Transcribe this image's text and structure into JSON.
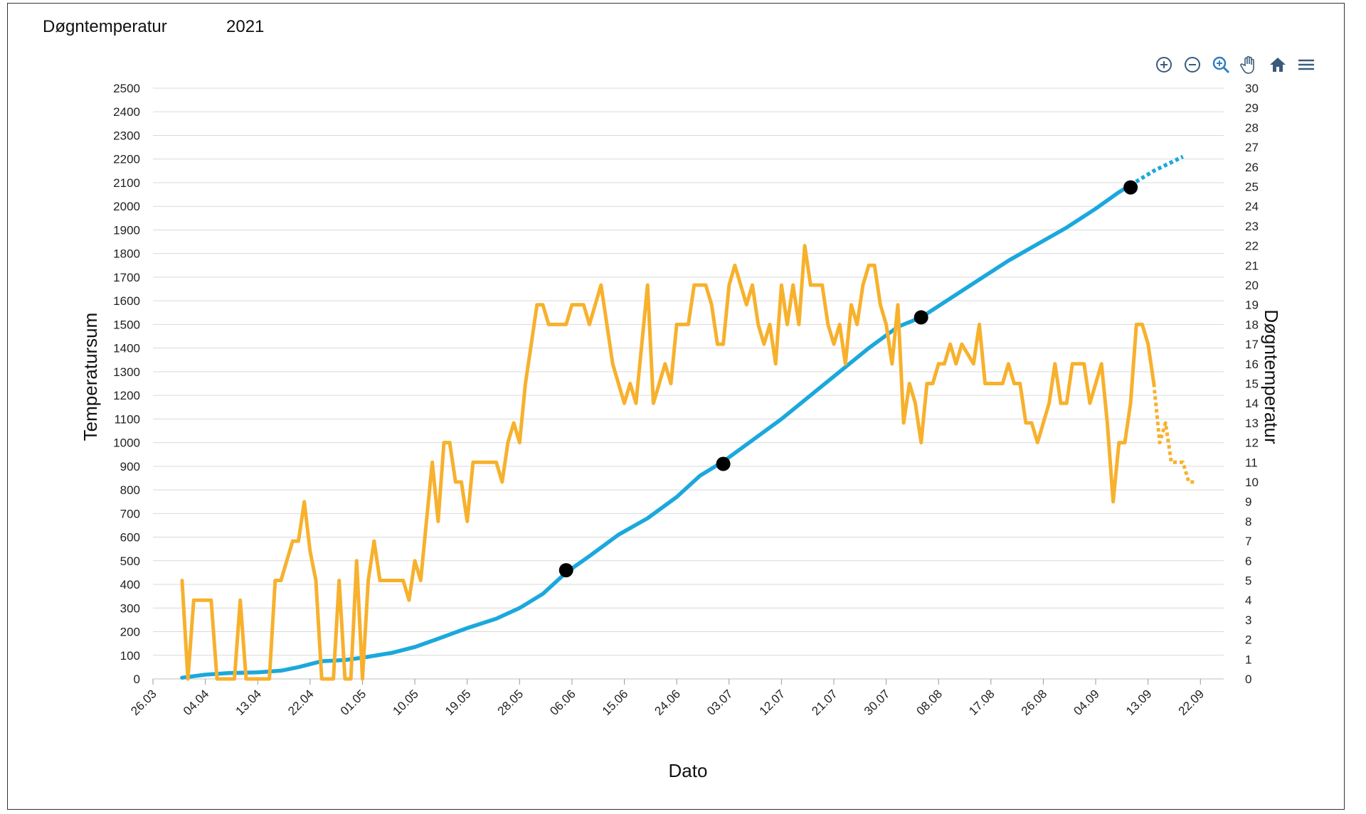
{
  "header": {
    "title": "Døgntemperatur",
    "year": "2021"
  },
  "toolbar": [
    {
      "name": "zoom-in-icon"
    },
    {
      "name": "zoom-out-icon"
    },
    {
      "name": "zoom-search-icon"
    },
    {
      "name": "pan-hand-icon"
    },
    {
      "name": "home-icon"
    },
    {
      "name": "menu-icon"
    }
  ],
  "chart_data": {
    "type": "line",
    "xlabel": "Dato",
    "ylabel_left": "Temperatursum",
    "ylabel_right": "Døgntemperatur",
    "xlim": [
      "2021-03-26",
      "2021-09-26"
    ],
    "ylim_left": [
      0,
      2500
    ],
    "ylim_right": [
      0,
      30
    ],
    "grid": true,
    "x_ticks": [
      "26.03",
      "04.04",
      "13.04",
      "22.04",
      "01.05",
      "10.05",
      "19.05",
      "28.05",
      "06.06",
      "15.06",
      "24.06",
      "03.07",
      "12.07",
      "21.07",
      "30.07",
      "08.08",
      "17.08",
      "26.08",
      "04.09",
      "13.09",
      "22.09"
    ],
    "y_ticks_left": [
      0,
      100,
      200,
      300,
      400,
      500,
      600,
      700,
      800,
      900,
      1000,
      1100,
      1200,
      1300,
      1400,
      1500,
      1600,
      1700,
      1800,
      1900,
      2000,
      2100,
      2200,
      2300,
      2400,
      2500
    ],
    "y_ticks_right": [
      0,
      1,
      2,
      3,
      4,
      5,
      6,
      7,
      8,
      9,
      10,
      11,
      12,
      13,
      14,
      15,
      16,
      17,
      18,
      19,
      20,
      21,
      22,
      23,
      24,
      25,
      26,
      27,
      28,
      29,
      30
    ],
    "colors": {
      "sum": "#1ba8dc",
      "temp": "#f7b12d",
      "marker": "#000000",
      "grid": "#d9d9d9"
    },
    "series": [
      {
        "axis": "left",
        "style": "solid",
        "points": [
          [
            "2021-03-31",
            5
          ],
          [
            "2021-04-04",
            18
          ],
          [
            "2021-04-08",
            25
          ],
          [
            "2021-04-13",
            28
          ],
          [
            "2021-04-17",
            35
          ],
          [
            "2021-04-20",
            50
          ],
          [
            "2021-04-24",
            75
          ],
          [
            "2021-04-28",
            80
          ],
          [
            "2021-05-01",
            90
          ],
          [
            "2021-05-06",
            110
          ],
          [
            "2021-05-10",
            135
          ],
          [
            "2021-05-14",
            170
          ],
          [
            "2021-05-19",
            215
          ],
          [
            "2021-05-24",
            255
          ],
          [
            "2021-05-28",
            300
          ],
          [
            "2021-06-01",
            360
          ],
          [
            "2021-06-05",
            450
          ],
          [
            "2021-06-09",
            520
          ],
          [
            "2021-06-14",
            610
          ],
          [
            "2021-06-19",
            680
          ],
          [
            "2021-06-24",
            770
          ],
          [
            "2021-06-28",
            860
          ],
          [
            "2021-07-02",
            920
          ],
          [
            "2021-07-07",
            1010
          ],
          [
            "2021-07-12",
            1100
          ],
          [
            "2021-07-17",
            1200
          ],
          [
            "2021-07-22",
            1300
          ],
          [
            "2021-07-27",
            1400
          ],
          [
            "2021-08-01",
            1490
          ],
          [
            "2021-08-05",
            1530
          ],
          [
            "2021-08-10",
            1610
          ],
          [
            "2021-08-15",
            1690
          ],
          [
            "2021-08-20",
            1770
          ],
          [
            "2021-08-25",
            1840
          ],
          [
            "2021-08-30",
            1910
          ],
          [
            "2021-09-04",
            1990
          ],
          [
            "2021-09-08",
            2060
          ],
          [
            "2021-09-10",
            2090
          ]
        ]
      },
      {
        "axis": "left",
        "style": "dotted",
        "points": [
          [
            "2021-09-10",
            2090
          ],
          [
            "2021-09-14",
            2150
          ],
          [
            "2021-09-19",
            2210
          ]
        ]
      },
      {
        "axis": "right",
        "style": "solid",
        "points": [
          [
            "2021-03-31",
            5
          ],
          [
            "2021-04-01",
            0
          ],
          [
            "2021-04-02",
            4
          ],
          [
            "2021-04-04",
            4
          ],
          [
            "2021-04-05",
            4
          ],
          [
            "2021-04-06",
            0
          ],
          [
            "2021-04-09",
            0
          ],
          [
            "2021-04-10",
            4
          ],
          [
            "2021-04-11",
            0
          ],
          [
            "2021-04-15",
            0
          ],
          [
            "2021-04-16",
            5
          ],
          [
            "2021-04-17",
            5
          ],
          [
            "2021-04-18",
            6
          ],
          [
            "2021-04-19",
            7
          ],
          [
            "2021-04-20",
            7
          ],
          [
            "2021-04-21",
            9
          ],
          [
            "2021-04-22",
            6.5
          ],
          [
            "2021-04-23",
            5
          ],
          [
            "2021-04-24",
            0
          ],
          [
            "2021-04-26",
            0
          ],
          [
            "2021-04-27",
            5
          ],
          [
            "2021-04-28",
            0
          ],
          [
            "2021-04-29",
            0
          ],
          [
            "2021-04-30",
            6
          ],
          [
            "2021-05-01",
            0
          ],
          [
            "2021-05-02",
            5
          ],
          [
            "2021-05-03",
            7
          ],
          [
            "2021-05-04",
            5
          ],
          [
            "2021-05-06",
            5
          ],
          [
            "2021-05-08",
            5
          ],
          [
            "2021-05-09",
            4
          ],
          [
            "2021-05-10",
            6
          ],
          [
            "2021-05-11",
            5
          ],
          [
            "2021-05-12",
            8
          ],
          [
            "2021-05-13",
            11
          ],
          [
            "2021-05-14",
            8
          ],
          [
            "2021-05-15",
            12
          ],
          [
            "2021-05-16",
            12
          ],
          [
            "2021-05-17",
            10
          ],
          [
            "2021-05-18",
            10
          ],
          [
            "2021-05-19",
            8
          ],
          [
            "2021-05-20",
            11
          ],
          [
            "2021-05-24",
            11
          ],
          [
            "2021-05-25",
            10
          ],
          [
            "2021-05-26",
            12
          ],
          [
            "2021-05-27",
            13
          ],
          [
            "2021-05-28",
            12
          ],
          [
            "2021-05-29",
            15
          ],
          [
            "2021-05-30",
            17
          ],
          [
            "2021-05-31",
            19
          ],
          [
            "2021-06-01",
            19
          ],
          [
            "2021-06-02",
            18
          ],
          [
            "2021-06-05",
            18
          ],
          [
            "2021-06-06",
            19
          ],
          [
            "2021-06-08",
            19
          ],
          [
            "2021-06-09",
            18
          ],
          [
            "2021-06-10",
            19
          ],
          [
            "2021-06-11",
            20
          ],
          [
            "2021-06-12",
            18
          ],
          [
            "2021-06-13",
            16
          ],
          [
            "2021-06-14",
            15
          ],
          [
            "2021-06-15",
            14
          ],
          [
            "2021-06-16",
            15
          ],
          [
            "2021-06-17",
            14
          ],
          [
            "2021-06-18",
            17
          ],
          [
            "2021-06-19",
            20
          ],
          [
            "2021-06-20",
            14
          ],
          [
            "2021-06-21",
            15
          ],
          [
            "2021-06-22",
            16
          ],
          [
            "2021-06-23",
            15
          ],
          [
            "2021-06-24",
            18
          ],
          [
            "2021-06-26",
            18
          ],
          [
            "2021-06-27",
            20
          ],
          [
            "2021-06-29",
            20
          ],
          [
            "2021-06-30",
            19
          ],
          [
            "2021-07-01",
            17
          ],
          [
            "2021-07-02",
            17
          ],
          [
            "2021-07-03",
            20
          ],
          [
            "2021-07-04",
            21
          ],
          [
            "2021-07-05",
            20
          ],
          [
            "2021-07-06",
            19
          ],
          [
            "2021-07-07",
            20
          ],
          [
            "2021-07-08",
            18
          ],
          [
            "2021-07-09",
            17
          ],
          [
            "2021-07-10",
            18
          ],
          [
            "2021-07-11",
            16
          ],
          [
            "2021-07-12",
            20
          ],
          [
            "2021-07-13",
            18
          ],
          [
            "2021-07-14",
            20
          ],
          [
            "2021-07-15",
            18
          ],
          [
            "2021-07-16",
            22
          ],
          [
            "2021-07-17",
            20
          ],
          [
            "2021-07-19",
            20
          ],
          [
            "2021-07-20",
            18
          ],
          [
            "2021-07-21",
            17
          ],
          [
            "2021-07-22",
            18
          ],
          [
            "2021-07-23",
            16
          ],
          [
            "2021-07-24",
            19
          ],
          [
            "2021-07-25",
            18
          ],
          [
            "2021-07-26",
            20
          ],
          [
            "2021-07-27",
            21
          ],
          [
            "2021-07-28",
            21
          ],
          [
            "2021-07-29",
            19
          ],
          [
            "2021-07-30",
            18
          ],
          [
            "2021-07-31",
            16
          ],
          [
            "2021-08-01",
            19
          ],
          [
            "2021-08-02",
            13
          ],
          [
            "2021-08-03",
            15
          ],
          [
            "2021-08-04",
            14
          ],
          [
            "2021-08-05",
            12
          ],
          [
            "2021-08-06",
            15
          ],
          [
            "2021-08-07",
            15
          ],
          [
            "2021-08-08",
            16
          ],
          [
            "2021-08-09",
            16
          ],
          [
            "2021-08-10",
            17
          ],
          [
            "2021-08-11",
            16
          ],
          [
            "2021-08-12",
            17
          ],
          [
            "2021-08-14",
            16
          ],
          [
            "2021-08-15",
            18
          ],
          [
            "2021-08-16",
            15
          ],
          [
            "2021-08-19",
            15
          ],
          [
            "2021-08-20",
            16
          ],
          [
            "2021-08-21",
            15
          ],
          [
            "2021-08-22",
            15
          ],
          [
            "2021-08-23",
            13
          ],
          [
            "2021-08-24",
            13
          ],
          [
            "2021-08-25",
            12
          ],
          [
            "2021-08-26",
            13
          ],
          [
            "2021-08-27",
            14
          ],
          [
            "2021-08-28",
            16
          ],
          [
            "2021-08-29",
            14
          ],
          [
            "2021-08-30",
            14
          ],
          [
            "2021-08-31",
            16
          ],
          [
            "2021-09-02",
            16
          ],
          [
            "2021-09-03",
            14
          ],
          [
            "2021-09-04",
            15
          ],
          [
            "2021-09-05",
            16
          ],
          [
            "2021-09-06",
            13
          ],
          [
            "2021-09-07",
            9
          ],
          [
            "2021-09-08",
            12
          ],
          [
            "2021-09-09",
            12
          ],
          [
            "2021-09-10",
            14
          ],
          [
            "2021-09-11",
            18
          ],
          [
            "2021-09-12",
            18
          ],
          [
            "2021-09-13",
            17
          ],
          [
            "2021-09-14",
            15
          ]
        ]
      },
      {
        "axis": "right",
        "style": "dotted",
        "points": [
          [
            "2021-09-14",
            15
          ],
          [
            "2021-09-15",
            12
          ],
          [
            "2021-09-16",
            13
          ],
          [
            "2021-09-17",
            11
          ],
          [
            "2021-09-19",
            11
          ],
          [
            "2021-09-20",
            10
          ],
          [
            "2021-09-21",
            10
          ]
        ]
      }
    ],
    "markers": [
      {
        "x": "2021-06-05",
        "y": 460
      },
      {
        "x": "2021-07-02",
        "y": 910
      },
      {
        "x": "2021-08-05",
        "y": 1530
      },
      {
        "x": "2021-09-10",
        "y": 2080
      }
    ]
  }
}
